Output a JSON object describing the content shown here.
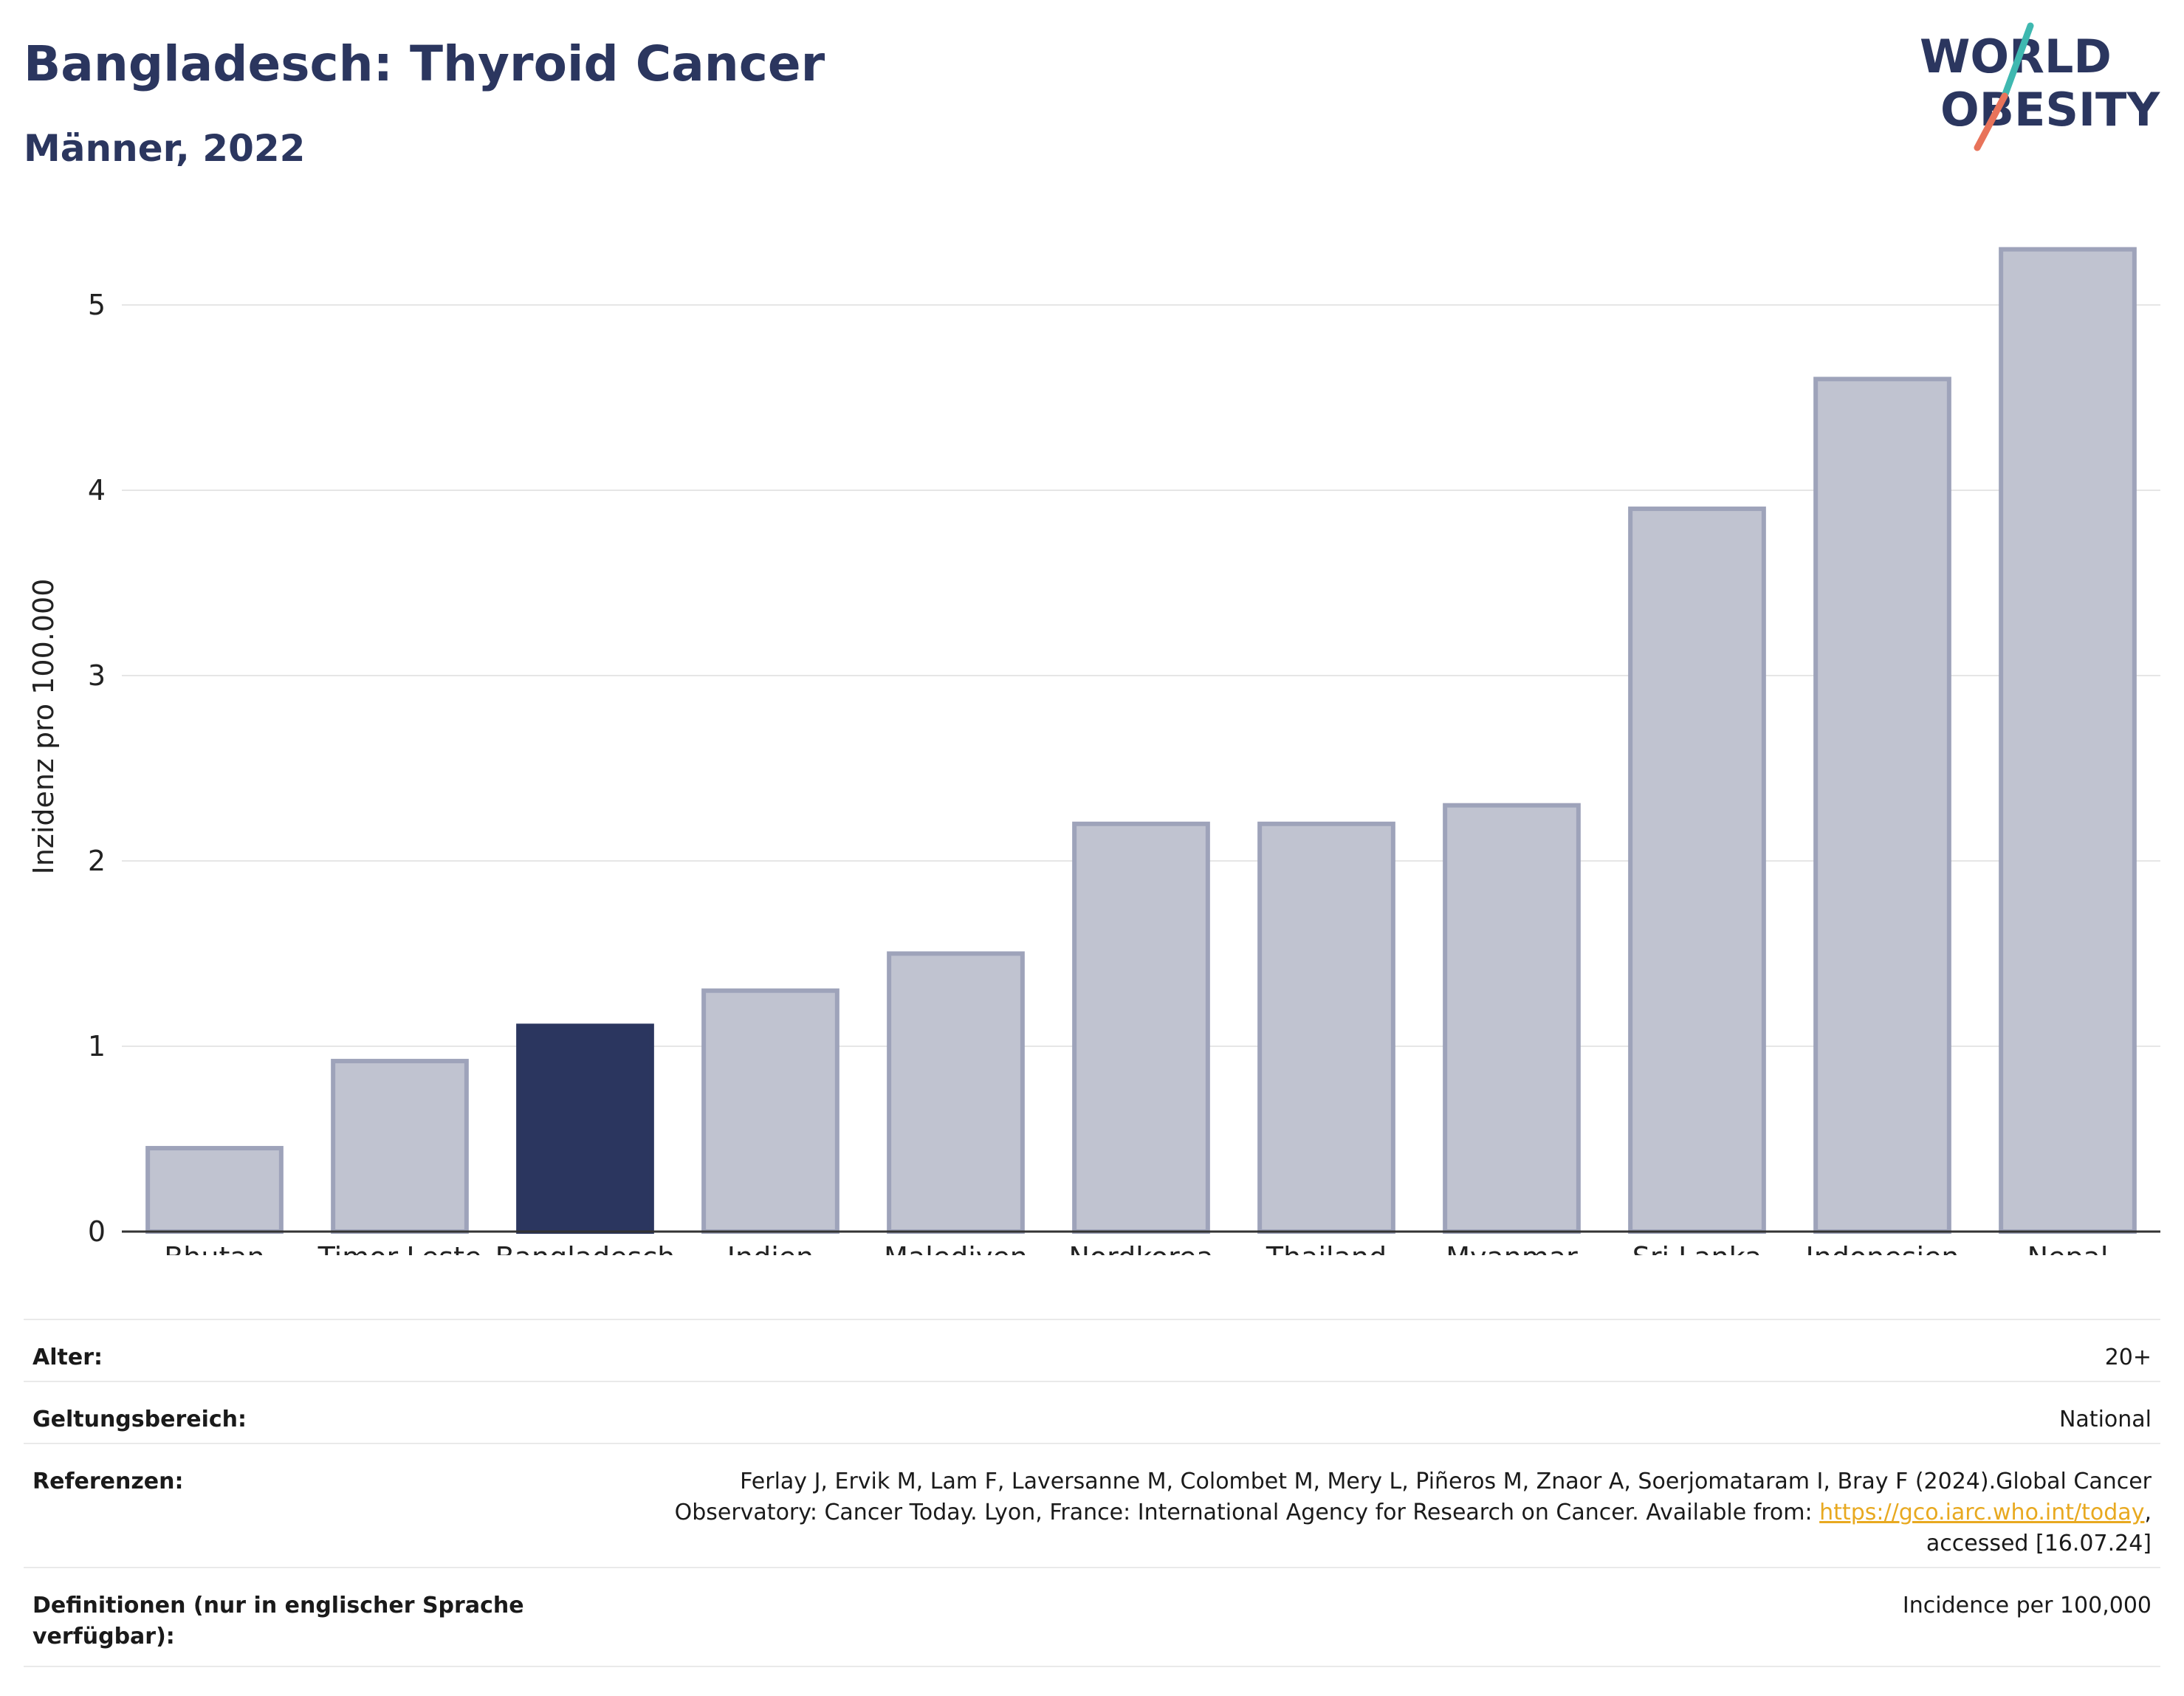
{
  "header": {
    "title": "Bangladesch: Thyroid Cancer",
    "subtitle": "Männer, 2022"
  },
  "logo": {
    "line1": "WORLD",
    "line2": "OBESITY",
    "colors": {
      "text": "#2b365f",
      "slash_top": "#3fb8b0",
      "slash_bottom": "#e8735a"
    }
  },
  "chart_data": {
    "type": "bar",
    "categories": [
      "Bhutan",
      "Timor-Leste",
      "Bangladesch",
      "Indien",
      "Malediven",
      "Nordkorea",
      "Thailand",
      "Myanmar",
      "Sri Lanka",
      "Indonesien",
      "Nepal"
    ],
    "values": [
      0.45,
      0.92,
      1.11,
      1.3,
      1.5,
      2.2,
      2.2,
      2.3,
      3.9,
      4.6,
      5.3
    ],
    "highlight": "Bangladesch",
    "ylabel": "Inzidenz pro 100.000",
    "ylim": [
      0,
      5.45
    ],
    "yticks": [
      0,
      1,
      2,
      3,
      4,
      5
    ],
    "grid": true,
    "colors": {
      "bar": "#c0c3d0",
      "bar_edge": "#9ea3ba",
      "highlight": "#2b365f",
      "grid": "#e6e6e6",
      "axis": "#333333"
    }
  },
  "info": {
    "age_label": "Alter:",
    "age_value": "20+",
    "scope_label": "Geltungsbereich:",
    "scope_value": "National",
    "ref_label": "Referenzen:",
    "ref_text_1": "Ferlay J, Ervik M, Lam F, Laversanne M, Colombet M, Mery L, Piñeros M, Znaor A, Soerjomataram I, Bray F (2024).Global Cancer Observatory: Cancer Today. Lyon, France: International Agency for Research on Cancer. Available from: ",
    "ref_link": "https://gco.iarc.who.int/today",
    "ref_text_2": ", accessed [16.07.24]",
    "def_label": "Definitionen (nur in englischer Sprache verfügbar):",
    "def_value": "Incidence per 100,000"
  }
}
